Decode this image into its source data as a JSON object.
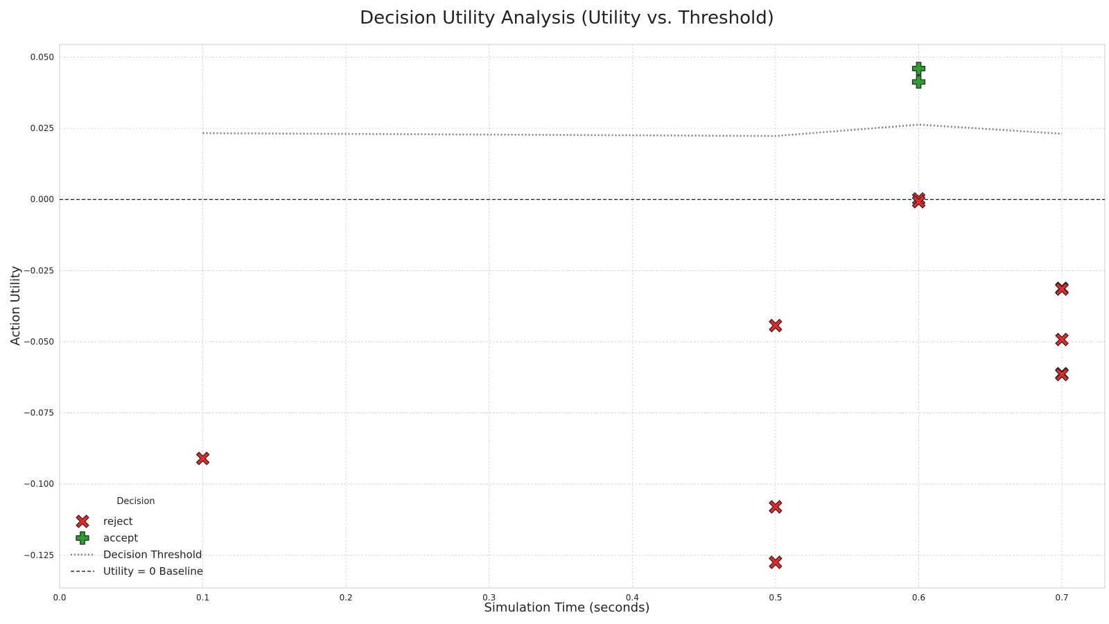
{
  "chart_data": {
    "type": "scatter",
    "title": "Decision Utility Analysis (Utility vs. Threshold)",
    "xlabel": "Simulation Time (seconds)",
    "ylabel": "Action Utility",
    "xlim": [
      0.0,
      0.73
    ],
    "ylim": [
      -0.1365,
      0.0545
    ],
    "x_ticks": [
      0.0,
      0.1,
      0.2,
      0.3,
      0.4,
      0.5,
      0.6,
      0.7
    ],
    "x_tick_labels": [
      "0.0",
      "0.1",
      "0.2",
      "0.3",
      "0.4",
      "0.5",
      "0.6",
      "0.7"
    ],
    "y_ticks": [
      0.05,
      0.025,
      0.0,
      -0.025,
      -0.05,
      -0.075,
      -0.1,
      -0.125
    ],
    "y_tick_labels": [
      "0.050",
      "0.025",
      "0.000",
      "−0.025",
      "−0.050",
      "−0.075",
      "−0.100",
      "−0.125"
    ],
    "grid": true,
    "legend_title": "Decision",
    "legend_position": "bottom-left",
    "series": [
      {
        "name": "reject",
        "kind": "scatter",
        "marker": "x-filled",
        "color": "#e8292b",
        "edge_color": "#222222",
        "points": [
          {
            "x": 0.1,
            "y": -0.091
          },
          {
            "x": 0.5,
            "y": -0.0443
          },
          {
            "x": 0.5,
            "y": -0.108
          },
          {
            "x": 0.5,
            "y": -0.1275
          },
          {
            "x": 0.6,
            "y": 0.0002
          },
          {
            "x": 0.6,
            "y": -0.0008
          },
          {
            "x": 0.7,
            "y": -0.0312
          },
          {
            "x": 0.7,
            "y": -0.0492
          },
          {
            "x": 0.7,
            "y": -0.0612
          },
          {
            "x": 0.7,
            "y": -0.0315
          },
          {
            "x": 0.7,
            "y": -0.0615
          }
        ]
      },
      {
        "name": "accept",
        "kind": "scatter",
        "marker": "plus-filled",
        "color": "#2ca02c",
        "edge_color": "#222222",
        "points": [
          {
            "x": 0.6,
            "y": 0.046
          },
          {
            "x": 0.6,
            "y": 0.0413
          }
        ]
      },
      {
        "name": "Decision Threshold",
        "kind": "line",
        "style": "dotted",
        "color": "#808080",
        "points": [
          {
            "x": 0.1,
            "y": 0.0233
          },
          {
            "x": 0.5,
            "y": 0.0223
          },
          {
            "x": 0.6,
            "y": 0.0263
          },
          {
            "x": 0.7,
            "y": 0.0231
          }
        ]
      },
      {
        "name": "Utility = 0 Baseline",
        "kind": "hline",
        "style": "dashed",
        "color": "#000000",
        "y": 0.0
      }
    ]
  }
}
